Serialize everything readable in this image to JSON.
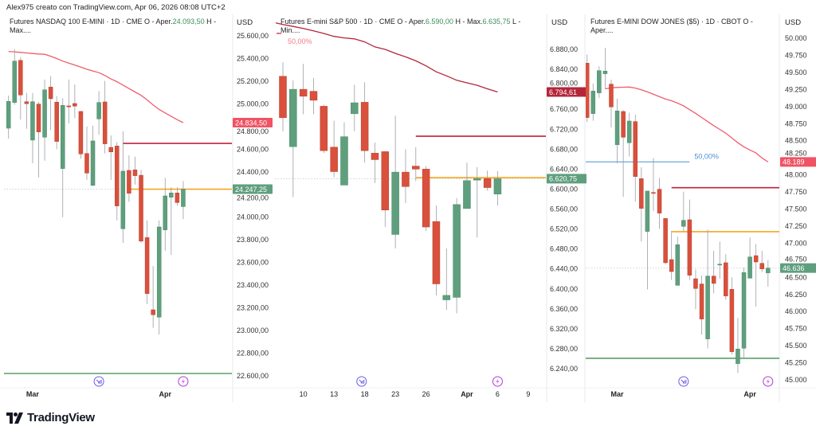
{
  "watermark": "Alex975 creato con TradingView.com, Apr 06, 2026 08:08 UTC+2",
  "brand": "TradingView",
  "colors": {
    "up": "#5f9f7e",
    "down": "#d9503c",
    "ma_light": "#ef5d6c",
    "ma_dark": "#b3263a",
    "level_red": "#c0213a",
    "level_orange": "#f5a623",
    "level_green": "#5c9e6a",
    "level_blue": "#4a90d9",
    "fib_pink": "#f07b8a",
    "event_blue": "#6b5ce7",
    "event_purple": "#b23bd6"
  },
  "panels": [
    {
      "header": {
        "title": "Futures NASDAQ 100 E-MINI · 1D · CME  O - Aper.",
        "open": "24.093,50",
        "rest": "  H - Max...."
      },
      "currency": "USD",
      "badges": {
        "ma": "24.834,50",
        "last": "24.247,25"
      }
    },
    {
      "header": {
        "title": "Futures E-mini S&P 500 · 1D · CME  O - Aper.",
        "open": "6.590,00",
        "h_label": "  H - Max.",
        "high": "6.635,75",
        "rest": "  L - Min...."
      },
      "currency": "USD",
      "badges": {
        "ma": "6.794,61",
        "last": "6.620,75"
      },
      "fib_label": "50,00%"
    },
    {
      "header": {
        "title": "Futures E-MINI DOW JONES ($5) · 1D · CBOT  O - Aper...."
      },
      "currency": "USD",
      "badges": {
        "ma": "48.189",
        "last": "46.636"
      },
      "fib_label": "50,00%"
    }
  ],
  "chart_data": [
    {
      "type": "candlestick",
      "title": "Futures NASDAQ 100 E-MINI · 1D · CME",
      "ylim": [
        22600,
        25600
      ],
      "y_ticks": [
        "25.600,00",
        "25.400,00",
        "25.200,00",
        "25.000,00",
        "24.800,00",
        "24.600,00",
        "24.400,00",
        "24.200,00",
        "24.000,00",
        "23.800,00",
        "23.600,00",
        "23.400,00",
        "23.200,00",
        "23.000,00",
        "22.800,00",
        "22.600,00"
      ],
      "y_tick_values": [
        25600,
        25400,
        25200,
        25000,
        24800,
        24600,
        24400,
        24200,
        24000,
        23800,
        23600,
        23400,
        23200,
        23000,
        22800,
        22600
      ],
      "x_labels": [
        {
          "label": "Mar",
          "index": 5
        },
        {
          "label": "Apr",
          "index": 27
        }
      ],
      "ohlc": [
        [
          24785,
          25073,
          24694,
          25022
        ],
        [
          25012,
          25483,
          24991,
          25377
        ],
        [
          25384,
          25412,
          24862,
          25078
        ],
        [
          25019,
          25096,
          24780,
          25001
        ],
        [
          24680,
          25096,
          24476,
          25019
        ],
        [
          24998,
          25017,
          24351,
          24752
        ],
        [
          24706,
          25214,
          24499,
          25124
        ],
        [
          25148,
          25244,
          24769,
          25045
        ],
        [
          25015,
          25068,
          24600,
          24668
        ],
        [
          24429,
          25050,
          24000,
          24987
        ],
        [
          24982,
          25214,
          24827,
          24980
        ],
        [
          25003,
          25171,
          24874,
          24980
        ],
        [
          24933,
          24938,
          24516,
          24558
        ],
        [
          24562,
          24801,
          24330,
          24389
        ],
        [
          24281,
          24808,
          24275,
          24673
        ],
        [
          24867,
          25113,
          24727,
          25012
        ],
        [
          25017,
          25202,
          24562,
          24647
        ],
        [
          24616,
          24722,
          24328,
          24576
        ],
        [
          24628,
          24663,
          23972,
          24099
        ],
        [
          23898,
          24757,
          23773,
          24406
        ],
        [
          24413,
          24546,
          24136,
          24211
        ],
        [
          24418,
          24534,
          24288,
          24366
        ],
        [
          24370,
          24418,
          23773,
          23789
        ],
        [
          23820,
          23972,
          23234,
          23326
        ],
        [
          23183,
          23569,
          23024,
          23139
        ],
        [
          23118,
          23972,
          22965,
          23914
        ],
        [
          23888,
          24347,
          23703,
          24188
        ],
        [
          24176,
          24265,
          23668,
          24214
        ],
        [
          24214,
          24265,
          24101,
          24129
        ],
        [
          24093.5,
          24319,
          23984,
          24247.25
        ]
      ],
      "moving_average": [
        25462,
        25459,
        25454,
        25449,
        25444,
        25440,
        25437,
        25420,
        25400,
        25377,
        25360,
        25342,
        25324,
        25305,
        25290,
        25275,
        25250,
        25220,
        25195,
        25165,
        25135,
        25105,
        25075,
        25035,
        24990,
        24950,
        24920,
        24890,
        24860,
        24834.5
      ],
      "ma_style": "light",
      "levels": [
        {
          "price": 24651,
          "from_index": 20,
          "color": "level_red"
        },
        {
          "price": 24247,
          "from_index": 21,
          "color": "level_orange"
        },
        {
          "price": 22621,
          "from_index": 0,
          "color": "level_green"
        }
      ],
      "last_price": 24247.25,
      "events": [
        {
          "type": "dividend-arrow",
          "index": 16
        },
        {
          "type": "lightning",
          "index": 30
        }
      ]
    },
    {
      "type": "candlestick",
      "title": "Futures E-mini S&P 500 · 1D · CME",
      "ylim": [
        6240,
        6880
      ],
      "y_ticks": [
        "6.880,00",
        "6.840,00",
        "6.800,00",
        "6.760,00",
        "6.720,00",
        "6.680,00",
        "6.640,00",
        "6.600,00",
        "6.560,00",
        "6.520,00",
        "6.480,00",
        "6.440,00",
        "6.400,00",
        "6.360,00",
        "6.320,00",
        "6.280,00",
        "6.240,00"
      ],
      "y_tick_values": [
        6880,
        6840,
        6800,
        6760,
        6720,
        6680,
        6640,
        6600,
        6560,
        6520,
        6480,
        6440,
        6400,
        6360,
        6320,
        6280,
        6240
      ],
      "x_labels": [
        {
          "label": "10",
          "index": 3
        },
        {
          "label": "13",
          "index": 6
        },
        {
          "label": "18",
          "index": 9
        },
        {
          "label": "23",
          "index": 12
        },
        {
          "label": "26",
          "index": 15
        },
        {
          "label": "Apr",
          "index": 19
        },
        {
          "label": "6",
          "index": 22
        },
        {
          "label": "9",
          "index": 25
        }
      ],
      "ohlc": [
        [
          6826,
          6854,
          6716,
          6743
        ],
        [
          6685,
          6818,
          6584,
          6800
        ],
        [
          6800,
          6851,
          6750,
          6786
        ],
        [
          6796,
          6823,
          6750,
          6778
        ],
        [
          6766,
          6769,
          6672,
          6677
        ],
        [
          6684,
          6737,
          6624,
          6635
        ],
        [
          6608,
          6734,
          6608,
          6705
        ],
        [
          6751,
          6809,
          6716,
          6773
        ],
        [
          6774,
          6814,
          6653,
          6677
        ],
        [
          6672,
          6693,
          6612,
          6659
        ],
        [
          6675,
          6676,
          6524,
          6558
        ],
        [
          6509,
          6747,
          6481,
          6634
        ],
        [
          6634,
          6680,
          6572,
          6605
        ],
        [
          6646,
          6684,
          6616,
          6640
        ],
        [
          6640,
          6646,
          6516,
          6524
        ],
        [
          6535,
          6567,
          6387,
          6410
        ],
        [
          6378,
          6481,
          6358,
          6387
        ],
        [
          6383,
          6582,
          6351,
          6569
        ],
        [
          6561,
          6653,
          6561,
          6617
        ],
        [
          6618,
          6644,
          6503,
          6621
        ],
        [
          6621,
          6637,
          6597,
          6603
        ],
        [
          6590,
          6635.75,
          6567,
          6620.75
        ]
      ],
      "moving_average": [
        6930,
        6926,
        6922,
        6917,
        6912,
        6906,
        6903,
        6901,
        6895,
        6885,
        6880,
        6872,
        6865,
        6857,
        6847,
        6835,
        6827,
        6818,
        6813,
        6808,
        6801,
        6794.61
      ],
      "ma_style": "dark",
      "levels": [
        {
          "price": 6706,
          "from_index": 14,
          "color": "level_red"
        },
        {
          "price": 6623,
          "from_index": 14,
          "color": "level_orange"
        }
      ],
      "fib": {
        "price": 6912,
        "color": "fib_pink"
      },
      "last_price": 6620.75,
      "events": [
        {
          "type": "dividend-arrow",
          "index": 8.7
        },
        {
          "type": "lightning",
          "index": 22
        }
      ]
    },
    {
      "type": "candlestick",
      "title": "Futures E-MINI DOW JONES ($5) · 1D · CBOT",
      "ylim": [
        45000,
        50000
      ],
      "y_ticks": [
        "50.000",
        "49.750",
        "49.500",
        "49.250",
        "49.000",
        "48.750",
        "48.500",
        "48.250",
        "48.000",
        "47.750",
        "47.500",
        "47.250",
        "47.000",
        "46.750",
        "46.500",
        "46.250",
        "46.000",
        "45.750",
        "45.500",
        "45.250",
        "45.000"
      ],
      "y_tick_values": [
        50000,
        49750,
        49500,
        49250,
        49000,
        48750,
        48500,
        48250,
        48000,
        47750,
        47500,
        47250,
        47000,
        46750,
        46500,
        46250,
        46000,
        45750,
        45500,
        45250,
        45000
      ],
      "x_labels": [
        {
          "label": "Mar",
          "index": 6
        },
        {
          "label": "Apr",
          "index": 28
        }
      ],
      "ohlc": [
        [
          49635,
          49763,
          48773,
          48839
        ],
        [
          48897,
          49336,
          48792,
          49227
        ],
        [
          49200,
          49588,
          49122,
          49526
        ],
        [
          49480,
          49860,
          49258,
          49519
        ],
        [
          49328,
          49394,
          48695,
          48994
        ],
        [
          48442,
          49115,
          48170,
          48936
        ],
        [
          48928,
          48948,
          47677,
          48551
        ],
        [
          48470,
          48909,
          48268,
          48788
        ],
        [
          48780,
          48881,
          47607,
          47976
        ],
        [
          47945,
          48112,
          47024,
          47510
        ],
        [
          47172,
          47763,
          46325,
          47763
        ],
        [
          47743,
          48248,
          47471,
          47740
        ],
        [
          47790,
          47957,
          47211,
          47440
        ],
        [
          47362,
          47366,
          46694,
          46714
        ],
        [
          46760,
          47180,
          46461,
          46585
        ],
        [
          46383,
          47094,
          46383,
          46978
        ],
        [
          47246,
          47755,
          47172,
          47335
        ],
        [
          47343,
          47638,
          46461,
          46531
        ],
        [
          46480,
          46616,
          46034,
          46337
        ],
        [
          46403,
          46527,
          45665,
          45890
        ],
        [
          45599,
          47199,
          45459,
          46519
        ],
        [
          46519,
          46888,
          46267,
          46411
        ],
        [
          46683,
          47024,
          46480,
          46694
        ],
        [
          46714,
          46838,
          46170,
          46228
        ],
        [
          46325,
          46500,
          45373,
          45412
        ],
        [
          45237,
          45906,
          45101,
          45451
        ],
        [
          45463,
          46644,
          45315,
          46570
        ],
        [
          46488,
          47083,
          46488,
          46799
        ],
        [
          46818,
          46986,
          46073,
          46725
        ],
        [
          46706,
          46888,
          46578,
          46624
        ],
        [
          46566,
          46752,
          46364,
          46636
        ]
      ],
      "moving_average": [
        null,
        null,
        null,
        49260,
        49275,
        49280,
        49283,
        49285,
        49270,
        49245,
        49215,
        49180,
        49145,
        49110,
        49085,
        49050,
        49010,
        48955,
        48900,
        48840,
        48780,
        48720,
        48665,
        48610,
        48540,
        48470,
        48410,
        48365,
        48320,
        48250,
        48189
      ],
      "ma_style": "light",
      "levels": [
        {
          "price": 48190,
          "from_index": 0,
          "to_index": 18,
          "color": "level_blue"
        },
        {
          "price": 47813,
          "from_index": 15,
          "color": "level_red"
        },
        {
          "price": 47168,
          "from_index": 15,
          "color": "level_orange"
        },
        {
          "price": 45315,
          "from_index": 0,
          "color": "level_green"
        }
      ],
      "last_price": 46636,
      "events": [
        {
          "type": "dividend-arrow",
          "index": 17
        },
        {
          "type": "lightning",
          "index": 31
        }
      ]
    }
  ]
}
